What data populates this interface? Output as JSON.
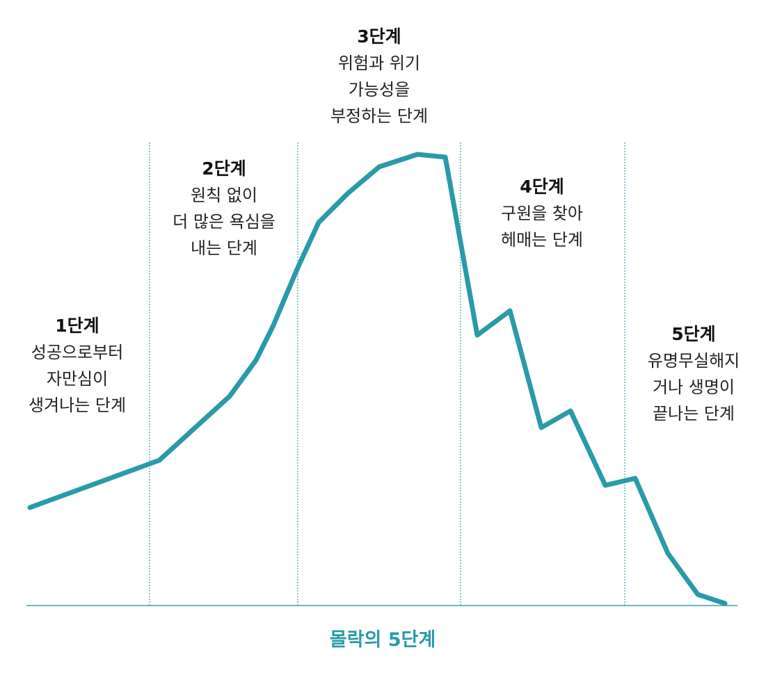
{
  "colors": {
    "line": "#2a9aa8",
    "divider": "#3aa0ae",
    "text": "#222222",
    "title_accent": "#2a9aa8"
  },
  "title": "몰락의 5단계",
  "stages": [
    {
      "title": "1단계",
      "lines": [
        "성공으로부터",
        "자만심이",
        "생겨나는 단계"
      ]
    },
    {
      "title": "2단계",
      "lines": [
        "원칙 없이",
        "더 많은 욕심을",
        "내는 단계"
      ]
    },
    {
      "title": "3단계",
      "lines": [
        "위험과 위기",
        "가능성을",
        "부정하는 단계"
      ]
    },
    {
      "title": "4단계",
      "lines": [
        "구원을 찾아",
        "헤매는 단계"
      ]
    },
    {
      "title": "5단계",
      "lines": [
        "유명무실해지",
        "거나 생명이",
        "끝나는 단계"
      ]
    }
  ]
}
